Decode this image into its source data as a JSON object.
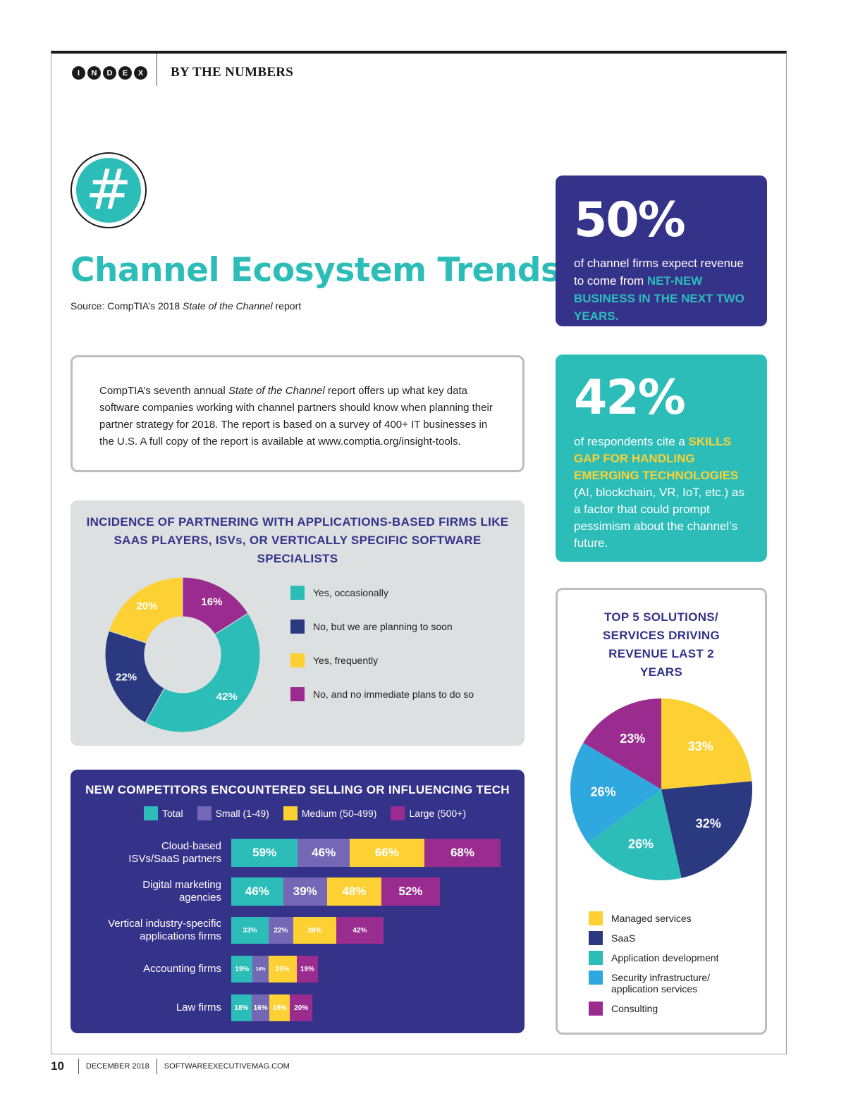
{
  "header": {
    "index_letters": [
      "I",
      "N",
      "D",
      "E",
      "X"
    ],
    "section": "BY THE NUMBERS"
  },
  "badge": {
    "symbol": "#",
    "icon": "hash-icon"
  },
  "title": "Channel Ecosystem Trends",
  "source": {
    "prefix": "Source: CompTIA’s 2018 ",
    "italic": "State of the Channel",
    "suffix": " report"
  },
  "intro": {
    "part1": "CompTIA’s seventh annual ",
    "italic": "State of the Channel",
    "part2": " report offers up what key data software companies working with channel partners should know when planning their partner strategy for 2018. The report is based on a survey of 400+ IT businesses in the U.S. A full copy of the report is available at www.comptia.org/insight-tools."
  },
  "stat1": {
    "value": "50%",
    "text": "of channel firms expect revenue to come from ",
    "highlight": "NET-NEW BUSINESS IN THE NEXT TWO YEARS."
  },
  "stat2": {
    "value": "42%",
    "text_before": "of respondents cite a ",
    "highlight": "SKILLS GAP FOR HANDLING EMERGING TECHNOLOGIES",
    "text_after": " (AI, blockchain, VR, IoT, etc.) as a factor that could prompt pessimism about the channel’s future."
  },
  "colors": {
    "teal": "#2cbdb9",
    "navy": "#2b3a80",
    "yellow": "#fdd033",
    "purple": "#9b2c8f",
    "lavender": "#7467b5",
    "blue": "#2fa8e0",
    "indigo": "#35328a"
  },
  "chart_data": [
    {
      "type": "pie",
      "title": "INCIDENCE OF PARTNERING WITH APPLICATIONS-BASED FIRMS LIKE SAAS PLAYERS, ISVs, OR VERTICALLY SPECIFIC SOFTWARE SPECIALISTS",
      "donut": true,
      "legend_position": "right",
      "slices": [
        {
          "name": "Yes, occasionally",
          "value": 42,
          "label": "42%",
          "color": "#2cbdb9"
        },
        {
          "name": "No, but we are planning to soon",
          "value": 22,
          "label": "22%",
          "color": "#2b3a80"
        },
        {
          "name": "Yes, frequently",
          "value": 20,
          "label": "20%",
          "color": "#fdd033"
        },
        {
          "name": "No, and no immediate plans to do so",
          "value": 16,
          "label": "16%",
          "color": "#9b2c8f"
        }
      ]
    },
    {
      "type": "bar",
      "orientation": "horizontal",
      "stacked": true,
      "title": "NEW COMPETITORS ENCOUNTERED SELLING OR INFLUENCING TECH",
      "legend_position": "top",
      "categories": [
        {
          "label_lines": [
            "Cloud-based",
            "ISVs/SaaS partners"
          ]
        },
        {
          "label_lines": [
            "Digital marketing",
            "agencies"
          ]
        },
        {
          "label_lines": [
            "Vertical industry-specific",
            "applications firms"
          ]
        },
        {
          "label_lines": [
            "Accounting firms"
          ]
        },
        {
          "label_lines": [
            "Law firms"
          ]
        }
      ],
      "series": [
        {
          "name": "Total",
          "color": "#2cbdb9",
          "values": [
            59,
            46,
            33,
            19,
            18
          ],
          "labels": [
            "59%",
            "46%",
            "33%",
            "19%",
            "18%"
          ]
        },
        {
          "name": "Small (1-49)",
          "color": "#7467b5",
          "values": [
            46,
            39,
            22,
            14,
            16
          ],
          "labels": [
            "46%",
            "39%",
            "22%",
            "14%",
            "16%"
          ]
        },
        {
          "name": "Medium (50-499)",
          "color": "#fdd033",
          "values": [
            66,
            48,
            38,
            25,
            18
          ],
          "labels": [
            "66%",
            "48%",
            "38%",
            "25%",
            "18%"
          ]
        },
        {
          "name": "Large (500+)",
          "color": "#9b2c8f",
          "values": [
            68,
            52,
            42,
            19,
            20
          ],
          "labels": [
            "68%",
            "52%",
            "42%",
            "19%",
            "20%"
          ]
        }
      ]
    },
    {
      "type": "pie",
      "title": "TOP 5 SOLUTIONS/ SERVICES DRIVING REVENUE LAST 2 YEARS",
      "legend_position": "bottom",
      "slices": [
        {
          "name": "Managed services",
          "value": 33,
          "label": "33%",
          "color": "#fdd033"
        },
        {
          "name": "SaaS",
          "value": 32,
          "label": "32%",
          "color": "#2b3a80"
        },
        {
          "name": "Application development",
          "value": 26,
          "label": "26%",
          "color": "#2cbdb9"
        },
        {
          "name": "Security infrastructure/ application services",
          "value": 26,
          "label": "26%",
          "color": "#2fa8e0"
        },
        {
          "name": "Consulting",
          "value": 23,
          "label": "23%",
          "color": "#9b2c8f"
        }
      ]
    }
  ],
  "footer": {
    "page": "10",
    "date": "DECEMBER 2018",
    "site": "SOFTWAREEXECUTIVEMAG.COM"
  }
}
